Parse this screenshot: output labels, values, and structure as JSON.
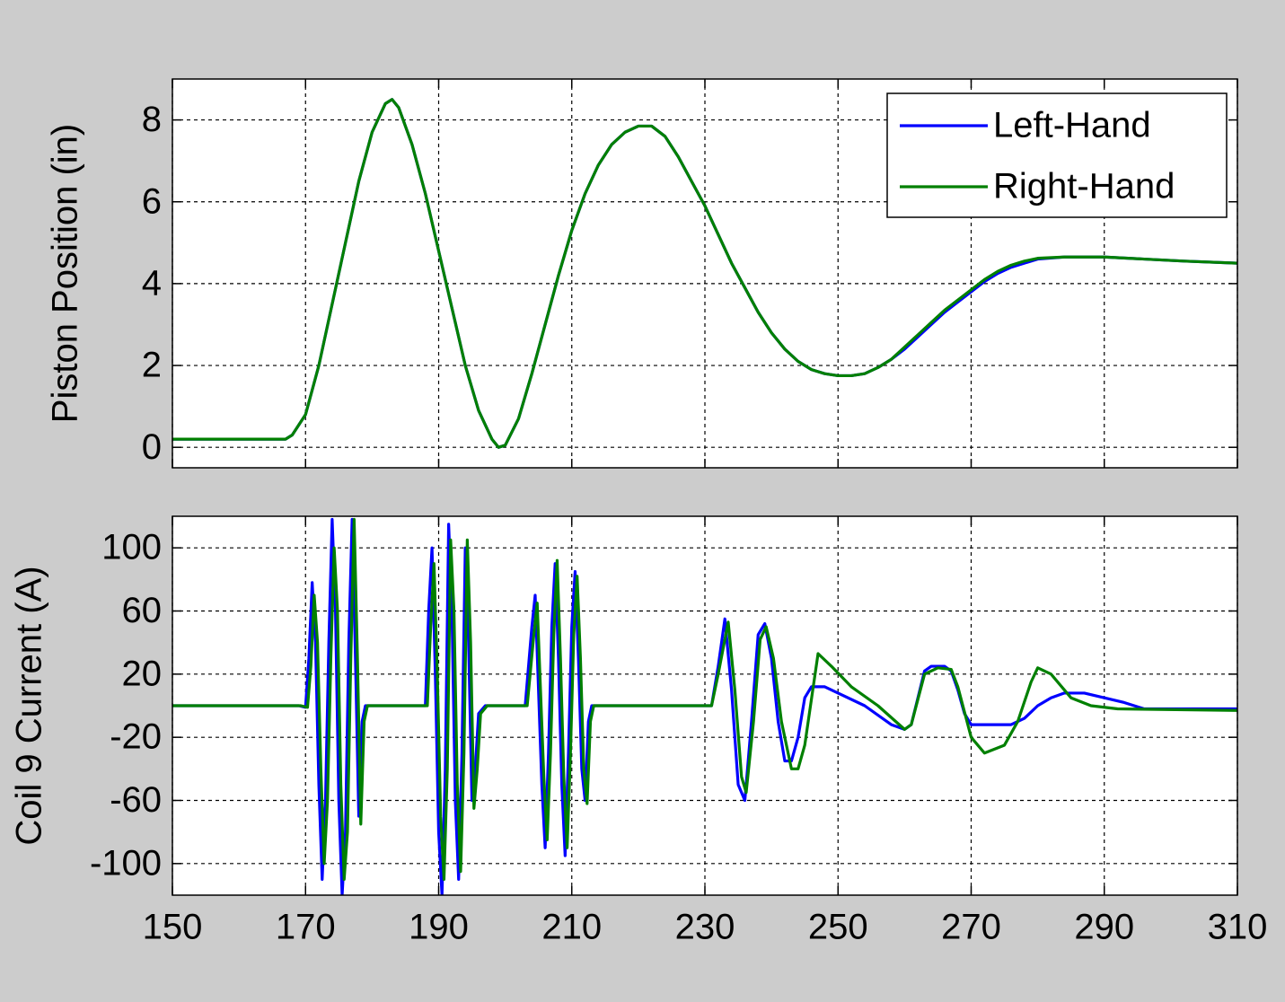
{
  "chart_data": [
    {
      "type": "line",
      "ylabel": "Piston Position (in)",
      "xlim": [
        150,
        310
      ],
      "xticks": [
        150,
        170,
        190,
        210,
        230,
        250,
        270,
        290,
        310
      ],
      "xtick_labels": false,
      "ylim": [
        -0.5,
        9
      ],
      "yticks": [
        0,
        2,
        4,
        6,
        8
      ],
      "grid": true,
      "legend": "northeast",
      "series": [
        {
          "name": "Left-Hand",
          "color": "#0000ff",
          "x": [
            150,
            160,
            167,
            168,
            170,
            172,
            174,
            176,
            178,
            180,
            182,
            183,
            184,
            186,
            188,
            190,
            192,
            194,
            196,
            198,
            199,
            200,
            202,
            204,
            206,
            208,
            210,
            212,
            214,
            216,
            218,
            220,
            222,
            224,
            226,
            228,
            230,
            232,
            234,
            236,
            238,
            240,
            242,
            244,
            246,
            248,
            250,
            252,
            254,
            256,
            258,
            260,
            262,
            264,
            266,
            268,
            270,
            272,
            274,
            276,
            278,
            280,
            284,
            290,
            296,
            302,
            310
          ],
          "values": [
            0.2,
            0.2,
            0.2,
            0.3,
            0.8,
            2.0,
            3.5,
            5.0,
            6.5,
            7.7,
            8.4,
            8.5,
            8.3,
            7.4,
            6.2,
            4.8,
            3.4,
            2.0,
            0.9,
            0.2,
            0.0,
            0.05,
            0.7,
            1.8,
            3.0,
            4.2,
            5.3,
            6.2,
            6.9,
            7.4,
            7.7,
            7.85,
            7.85,
            7.6,
            7.1,
            6.5,
            5.9,
            5.2,
            4.5,
            3.9,
            3.3,
            2.8,
            2.4,
            2.1,
            1.9,
            1.8,
            1.75,
            1.75,
            1.8,
            1.95,
            2.15,
            2.4,
            2.7,
            3.0,
            3.3,
            3.55,
            3.8,
            4.05,
            4.25,
            4.4,
            4.5,
            4.6,
            4.65,
            4.65,
            4.6,
            4.55,
            4.5
          ]
        },
        {
          "name": "Right-Hand",
          "color": "#008000",
          "x": [
            150,
            160,
            167,
            168,
            170,
            172,
            174,
            176,
            178,
            180,
            182,
            183,
            184,
            186,
            188,
            190,
            192,
            194,
            196,
            198,
            199,
            200,
            202,
            204,
            206,
            208,
            210,
            212,
            214,
            216,
            218,
            220,
            222,
            224,
            226,
            228,
            230,
            232,
            234,
            236,
            238,
            240,
            242,
            244,
            246,
            248,
            250,
            252,
            254,
            256,
            258,
            260,
            262,
            264,
            266,
            268,
            270,
            272,
            274,
            276,
            278,
            280,
            284,
            290,
            296,
            302,
            310
          ],
          "values": [
            0.2,
            0.2,
            0.2,
            0.3,
            0.8,
            2.0,
            3.5,
            5.0,
            6.5,
            7.7,
            8.4,
            8.5,
            8.3,
            7.4,
            6.2,
            4.8,
            3.4,
            2.0,
            0.9,
            0.2,
            0.0,
            0.05,
            0.7,
            1.8,
            3.0,
            4.2,
            5.3,
            6.2,
            6.9,
            7.4,
            7.7,
            7.85,
            7.85,
            7.6,
            7.1,
            6.5,
            5.9,
            5.2,
            4.5,
            3.9,
            3.3,
            2.8,
            2.4,
            2.1,
            1.9,
            1.8,
            1.75,
            1.75,
            1.8,
            1.95,
            2.15,
            2.45,
            2.75,
            3.05,
            3.35,
            3.6,
            3.85,
            4.1,
            4.3,
            4.45,
            4.55,
            4.62,
            4.65,
            4.65,
            4.6,
            4.55,
            4.5
          ]
        }
      ]
    },
    {
      "type": "line",
      "ylabel": "Coil 9 Current (A)",
      "xlim": [
        150,
        310
      ],
      "xticks": [
        150,
        170,
        190,
        210,
        230,
        250,
        270,
        290,
        310
      ],
      "ylim": [
        -120,
        120
      ],
      "yticks": [
        100,
        60,
        20,
        -20,
        -60,
        -100
      ],
      "grid": true,
      "series": [
        {
          "color": "#0000ff",
          "x": [
            150,
            169,
            170,
            170.5,
            171,
            171.5,
            172,
            172.5,
            173,
            173.5,
            174,
            174.5,
            175,
            175.5,
            176,
            176.5,
            177,
            177.5,
            178,
            178.5,
            179,
            185,
            188,
            188.5,
            189,
            189.5,
            190,
            190.5,
            191,
            191.5,
            192,
            192.5,
            193,
            193.5,
            194,
            194.5,
            195,
            195.5,
            196,
            197,
            203,
            204,
            204.5,
            205,
            205.5,
            206,
            206.5,
            207,
            207.5,
            208,
            208.5,
            209,
            209.5,
            210,
            210.5,
            211,
            211.5,
            212,
            212.5,
            213,
            231,
            232,
            233,
            234,
            235,
            236,
            237,
            238,
            239,
            240,
            241,
            242,
            243,
            244,
            245,
            246,
            248,
            250,
            254,
            258,
            260,
            261,
            262,
            263,
            264,
            266,
            267,
            268,
            269,
            270,
            272,
            276,
            278,
            280,
            282,
            284,
            287,
            290,
            293,
            296,
            310
          ],
          "values": [
            0,
            0,
            -1,
            30,
            78,
            40,
            -50,
            -110,
            -60,
            40,
            118,
            60,
            -60,
            -120,
            -80,
            40,
            118,
            30,
            -70,
            -10,
            0,
            0,
            0,
            60,
            100,
            20,
            -80,
            -120,
            -40,
            115,
            60,
            -60,
            -110,
            -30,
            100,
            40,
            -60,
            -40,
            -5,
            0,
            0,
            50,
            70,
            10,
            -50,
            -90,
            -30,
            50,
            90,
            30,
            -50,
            -95,
            -30,
            50,
            85,
            30,
            -40,
            -60,
            -10,
            0,
            0,
            25,
            55,
            10,
            -50,
            -60,
            -10,
            45,
            52,
            30,
            -10,
            -35,
            -35,
            -20,
            5,
            12,
            12,
            8,
            0,
            -12,
            -15,
            -12,
            5,
            22,
            25,
            25,
            22,
            10,
            -5,
            -12,
            -12,
            -12,
            -8,
            0,
            5,
            8,
            8,
            5,
            2,
            -2,
            -2
          ]
        },
        {
          "color": "#008000",
          "x": [
            150,
            169.3,
            170.3,
            170.8,
            171.3,
            171.8,
            172.3,
            172.8,
            173.3,
            173.8,
            174.3,
            174.8,
            175.3,
            175.8,
            176.3,
            176.8,
            177.3,
            177.8,
            178.3,
            178.8,
            179.3,
            185,
            188.3,
            188.8,
            189.3,
            189.8,
            190.3,
            190.8,
            191.3,
            191.8,
            192.3,
            192.8,
            193.3,
            193.8,
            194.3,
            194.8,
            195.3,
            195.8,
            196.3,
            197.3,
            203.3,
            204.3,
            204.8,
            205.3,
            205.8,
            206.3,
            206.8,
            207.3,
            207.8,
            208.3,
            208.8,
            209.3,
            209.8,
            210.3,
            210.8,
            211.3,
            211.8,
            212.3,
            212.8,
            213.3,
            231,
            232,
            233.5,
            234.5,
            235.5,
            236.2,
            237.3,
            238.3,
            239.2,
            240.3,
            241.5,
            243,
            244,
            245,
            247,
            249,
            252,
            256,
            260,
            261,
            263,
            265,
            267,
            268,
            270,
            272,
            275,
            277,
            279,
            280,
            282,
            285,
            288,
            292,
            310
          ],
          "values": [
            0,
            0,
            -1,
            25,
            70,
            40,
            -40,
            -100,
            -60,
            30,
            100,
            60,
            -50,
            -110,
            -80,
            30,
            118,
            30,
            -75,
            -10,
            0,
            0,
            0,
            50,
            90,
            20,
            -70,
            -110,
            -40,
            105,
            60,
            -50,
            -105,
            -30,
            105,
            40,
            -65,
            -40,
            -5,
            0,
            0,
            45,
            65,
            10,
            -45,
            -85,
            -30,
            45,
            92,
            30,
            -45,
            -90,
            -30,
            45,
            82,
            30,
            -40,
            -62,
            -10,
            0,
            0,
            20,
            53,
            10,
            -45,
            -55,
            -10,
            42,
            50,
            30,
            -10,
            -40,
            -40,
            -25,
            33,
            25,
            12,
            0,
            -15,
            -12,
            20,
            24,
            23,
            12,
            -20,
            -30,
            -25,
            -10,
            15,
            24,
            20,
            5,
            0,
            -2,
            -3
          ]
        }
      ]
    }
  ]
}
